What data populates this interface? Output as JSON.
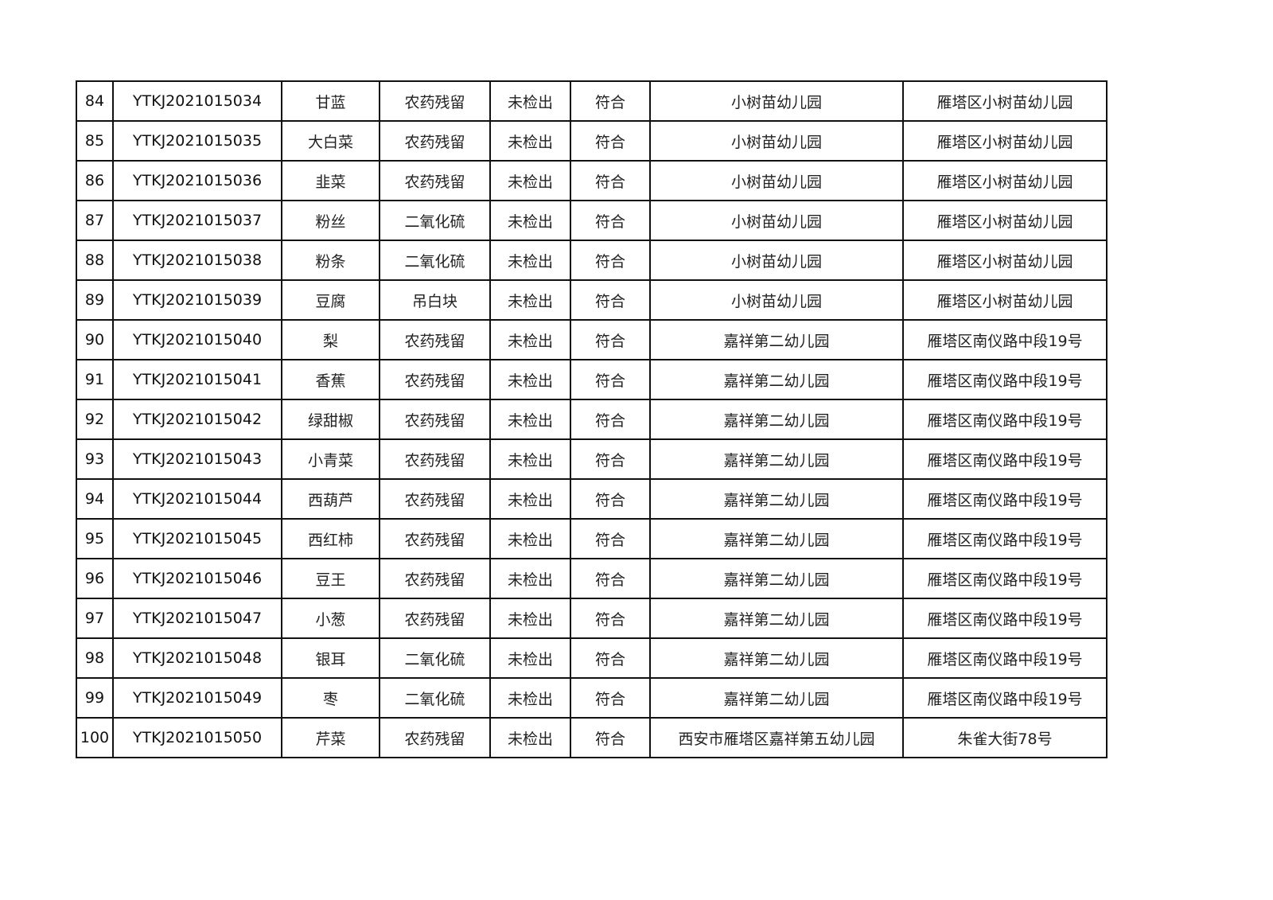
{
  "table": {
    "rows": [
      [
        "84",
        "YTKJ2021015034",
        "甘蓝",
        "农药残留",
        "未检出",
        "符合",
        "小树苗幼儿园",
        "雁塔区小树苗幼儿园"
      ],
      [
        "85",
        "YTKJ2021015035",
        "大白菜",
        "农药残留",
        "未检出",
        "符合",
        "小树苗幼儿园",
        "雁塔区小树苗幼儿园"
      ],
      [
        "86",
        "YTKJ2021015036",
        "韭菜",
        "农药残留",
        "未检出",
        "符合",
        "小树苗幼儿园",
        "雁塔区小树苗幼儿园"
      ],
      [
        "87",
        "YTKJ2021015037",
        "粉丝",
        "二氧化硫",
        "未检出",
        "符合",
        "小树苗幼儿园",
        "雁塔区小树苗幼儿园"
      ],
      [
        "88",
        "YTKJ2021015038",
        "粉条",
        "二氧化硫",
        "未检出",
        "符合",
        "小树苗幼儿园",
        "雁塔区小树苗幼儿园"
      ],
      [
        "89",
        "YTKJ2021015039",
        "豆腐",
        "吊白块",
        "未检出",
        "符合",
        "小树苗幼儿园",
        "雁塔区小树苗幼儿园"
      ],
      [
        "90",
        "YTKJ2021015040",
        "梨",
        "农药残留",
        "未检出",
        "符合",
        "嘉祥第二幼儿园",
        "雁塔区南仪路中段19号"
      ],
      [
        "91",
        "YTKJ2021015041",
        "香蕉",
        "农药残留",
        "未检出",
        "符合",
        "嘉祥第二幼儿园",
        "雁塔区南仪路中段19号"
      ],
      [
        "92",
        "YTKJ2021015042",
        "绿甜椒",
        "农药残留",
        "未检出",
        "符合",
        "嘉祥第二幼儿园",
        "雁塔区南仪路中段19号"
      ],
      [
        "93",
        "YTKJ2021015043",
        "小青菜",
        "农药残留",
        "未检出",
        "符合",
        "嘉祥第二幼儿园",
        "雁塔区南仪路中段19号"
      ],
      [
        "94",
        "YTKJ2021015044",
        "西葫芦",
        "农药残留",
        "未检出",
        "符合",
        "嘉祥第二幼儿园",
        "雁塔区南仪路中段19号"
      ],
      [
        "95",
        "YTKJ2021015045",
        "西红柿",
        "农药残留",
        "未检出",
        "符合",
        "嘉祥第二幼儿园",
        "雁塔区南仪路中段19号"
      ],
      [
        "96",
        "YTKJ2021015046",
        "豆王",
        "农药残留",
        "未检出",
        "符合",
        "嘉祥第二幼儿园",
        "雁塔区南仪路中段19号"
      ],
      [
        "97",
        "YTKJ2021015047",
        "小葱",
        "农药残留",
        "未检出",
        "符合",
        "嘉祥第二幼儿园",
        "雁塔区南仪路中段19号"
      ],
      [
        "98",
        "YTKJ2021015048",
        "银耳",
        "二氧化硫",
        "未检出",
        "符合",
        "嘉祥第二幼儿园",
        "雁塔区南仪路中段19号"
      ],
      [
        "99",
        "YTKJ2021015049",
        "枣",
        "二氧化硫",
        "未检出",
        "符合",
        "嘉祥第二幼儿园",
        "雁塔区南仪路中段19号"
      ],
      [
        "100",
        "YTKJ2021015050",
        "芹菜",
        "农药残留",
        "未检出",
        "符合",
        "西安市雁塔区嘉祥第五幼儿园",
        "朱雀大街78号"
      ]
    ]
  }
}
